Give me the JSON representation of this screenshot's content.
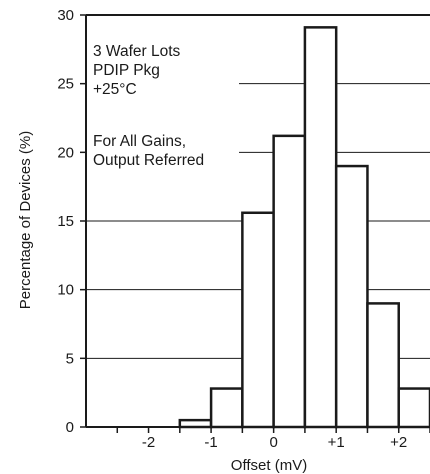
{
  "chart_data": {
    "type": "bar",
    "xlabel": "Offset (mV)",
    "ylabel": "Percentage of Devices (%)",
    "ylim": [
      0,
      30
    ],
    "xlim": [
      -3,
      2.5
    ],
    "y_ticks": [
      "0",
      "5",
      "10",
      "15",
      "20",
      "25",
      "30"
    ],
    "x_ticks": [
      {
        "value": -2,
        "label": "-2"
      },
      {
        "value": -1,
        "label": "-1"
      },
      {
        "value": 0,
        "label": "0"
      },
      {
        "value": 1,
        "label": "+1"
      },
      {
        "value": 2,
        "label": "+2"
      }
    ],
    "bins": [
      {
        "from": -1.5,
        "to": -1.0,
        "value": 0.5
      },
      {
        "from": -1.0,
        "to": -0.5,
        "value": 2.8
      },
      {
        "from": -0.5,
        "to": 0.0,
        "value": 15.6
      },
      {
        "from": 0.0,
        "to": 0.5,
        "value": 21.2
      },
      {
        "from": 0.5,
        "to": 1.0,
        "value": 29.1
      },
      {
        "from": 1.0,
        "to": 1.5,
        "value": 19.0
      },
      {
        "from": 1.5,
        "to": 2.0,
        "value": 9.0
      },
      {
        "from": 2.0,
        "to": 2.5,
        "value": 2.8
      }
    ],
    "grid": "horizontal",
    "annotation_lines": [
      "3 Wafer Lots",
      "PDIP Pkg",
      "+25°C",
      "",
      "For All Gains,",
      "Output Referred"
    ],
    "colors": {
      "axis": "#1a1a1a",
      "bar_fill": "#ffffff",
      "bar_stroke": "#1a1a1a",
      "grid": "#1a1a1a"
    }
  }
}
